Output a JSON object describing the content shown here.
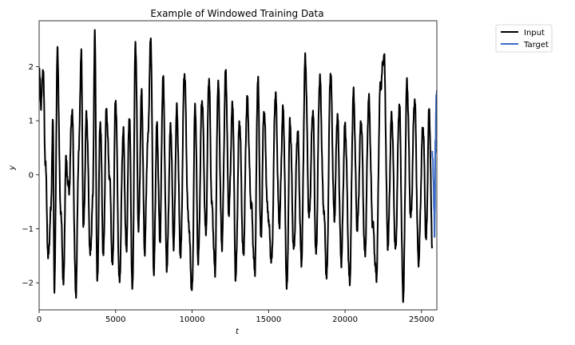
{
  "chart_data": {
    "type": "line",
    "title": "Example of Windowed Training Data",
    "xlabel": "t",
    "ylabel": "y",
    "xlim": [
      0,
      26000
    ],
    "ylim": [
      -2.5,
      2.85
    ],
    "xticks": [
      0,
      5000,
      10000,
      15000,
      20000,
      25000
    ],
    "yticks": [
      -2,
      -1,
      0,
      1,
      2
    ],
    "grid": false,
    "legend_position": "outside-top-right",
    "series": [
      {
        "name": "Input",
        "color": "#000000",
        "x_range": [
          0,
          25700
        ],
        "oscillation_period_approx": 510,
        "y_min_approx": -2.2,
        "y_max_approx": 2.57,
        "points": [
          [
            0,
            1.9
          ],
          [
            130,
            1.3
          ],
          [
            260,
            2.0
          ],
          [
            400,
            0.3
          ],
          [
            600,
            -1.55
          ],
          [
            760,
            -0.7
          ],
          [
            900,
            0.95
          ],
          [
            1000,
            -2.1
          ],
          [
            1200,
            2.25
          ],
          [
            1400,
            -0.6
          ],
          [
            1600,
            -2.0
          ],
          [
            1750,
            0.25
          ],
          [
            1950,
            -0.3
          ],
          [
            2150,
            1.2
          ],
          [
            2400,
            -2.2
          ],
          [
            2600,
            0.5
          ],
          [
            2750,
            2.27
          ],
          [
            2900,
            -1.0
          ],
          [
            3100,
            1.1
          ],
          [
            3350,
            -1.5
          ],
          [
            3500,
            -0.5
          ],
          [
            3640,
            2.57
          ],
          [
            3800,
            -2.0
          ],
          [
            4000,
            1.0
          ],
          [
            4200,
            -1.5
          ],
          [
            4400,
            1.2
          ],
          [
            4600,
            0.0
          ],
          [
            4800,
            -1.7
          ],
          [
            5000,
            1.4
          ],
          [
            5250,
            -2.0
          ],
          [
            5500,
            0.8
          ],
          [
            5700,
            -1.4
          ],
          [
            5900,
            1.1
          ],
          [
            6100,
            -2.15
          ],
          [
            6300,
            2.45
          ],
          [
            6500,
            -1.0
          ],
          [
            6700,
            1.5
          ],
          [
            6900,
            -1.4
          ],
          [
            7100,
            0.6
          ],
          [
            7300,
            2.5
          ],
          [
            7500,
            -1.8
          ],
          [
            7700,
            0.9
          ],
          [
            7900,
            -1.2
          ],
          [
            8100,
            1.8
          ],
          [
            8350,
            -1.7
          ],
          [
            8600,
            0.9
          ],
          [
            8800,
            -1.3
          ],
          [
            9000,
            1.2
          ],
          [
            9250,
            -1.5
          ],
          [
            9500,
            1.9
          ],
          [
            9750,
            -0.8
          ],
          [
            10000,
            -2.15
          ],
          [
            10200,
            1.3
          ],
          [
            10400,
            -1.6
          ],
          [
            10650,
            1.4
          ],
          [
            10900,
            -1.1
          ],
          [
            11100,
            1.8
          ],
          [
            11300,
            -0.6
          ],
          [
            11500,
            -1.8
          ],
          [
            11700,
            1.7
          ],
          [
            11950,
            -1.3
          ],
          [
            12200,
            1.9
          ],
          [
            12400,
            -0.7
          ],
          [
            12650,
            1.3
          ],
          [
            12850,
            -1.9
          ],
          [
            13100,
            1.0
          ],
          [
            13350,
            -1.5
          ],
          [
            13600,
            1.4
          ],
          [
            13850,
            -0.5
          ],
          [
            14100,
            -1.8
          ],
          [
            14300,
            1.8
          ],
          [
            14500,
            -1.2
          ],
          [
            14700,
            1.2
          ],
          [
            14950,
            -0.7
          ],
          [
            15200,
            -1.6
          ],
          [
            15450,
            1.5
          ],
          [
            15700,
            -0.9
          ],
          [
            15950,
            1.2
          ],
          [
            16200,
            -2.1
          ],
          [
            16400,
            1.0
          ],
          [
            16650,
            -1.4
          ],
          [
            16900,
            0.8
          ],
          [
            17150,
            -1.6
          ],
          [
            17400,
            2.15
          ],
          [
            17650,
            -0.8
          ],
          [
            17900,
            1.2
          ],
          [
            18100,
            -1.5
          ],
          [
            18350,
            1.8
          ],
          [
            18600,
            -0.6
          ],
          [
            18800,
            -1.9
          ],
          [
            19050,
            1.9
          ],
          [
            19300,
            -0.8
          ],
          [
            19500,
            1.1
          ],
          [
            19750,
            -1.6
          ],
          [
            20000,
            0.9
          ],
          [
            20300,
            -2.0
          ],
          [
            20550,
            1.5
          ],
          [
            20800,
            -1.0
          ],
          [
            21050,
            1.0
          ],
          [
            21300,
            -1.5
          ],
          [
            21550,
            1.4
          ],
          [
            21800,
            -0.9
          ],
          [
            22050,
            -1.9
          ],
          [
            22300,
            1.6
          ],
          [
            22550,
            2.2
          ],
          [
            22800,
            -1.3
          ],
          [
            23050,
            1.1
          ],
          [
            23300,
            -1.4
          ],
          [
            23550,
            1.3
          ],
          [
            23800,
            -2.25
          ],
          [
            24050,
            1.7
          ],
          [
            24300,
            -0.8
          ],
          [
            24550,
            1.4
          ],
          [
            24800,
            -1.6
          ],
          [
            25100,
            0.9
          ],
          [
            25300,
            -1.2
          ],
          [
            25500,
            1.2
          ],
          [
            25700,
            -1.3
          ]
        ]
      },
      {
        "name": "Target",
        "color": "#3a6bc4",
        "x_range": [
          25700,
          26000
        ],
        "points": [
          [
            25700,
            0.5
          ],
          [
            25740,
            0.2
          ],
          [
            25780,
            -0.2
          ],
          [
            25820,
            -0.6
          ],
          [
            25850,
            -1.05
          ],
          [
            25880,
            -0.7
          ],
          [
            25900,
            0.6
          ],
          [
            25920,
            0.3
          ],
          [
            25940,
            1.2
          ],
          [
            25960,
            1.5
          ],
          [
            25980,
            1.0
          ],
          [
            26000,
            1.6
          ]
        ]
      }
    ]
  }
}
